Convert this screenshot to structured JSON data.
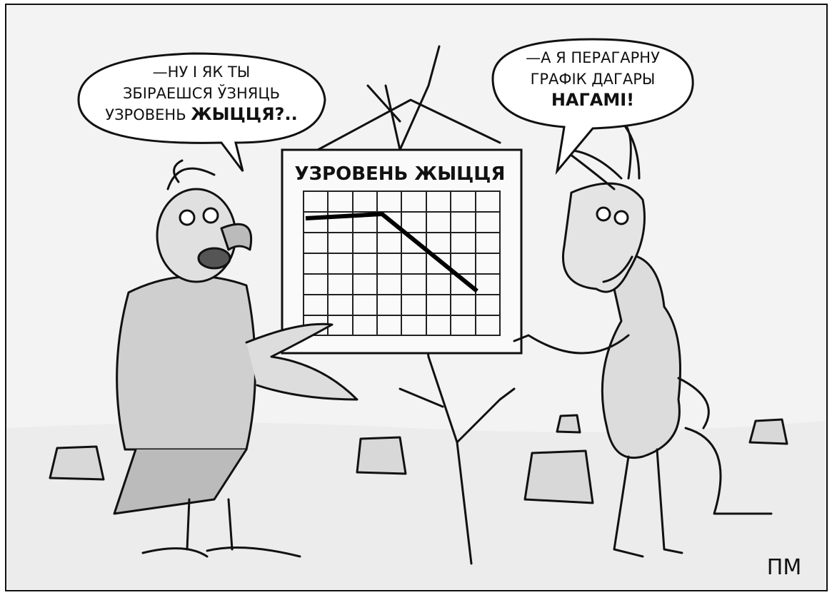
{
  "bubbles": [
    {
      "lines": [
        "—НУ І ЯК ТЫ",
        "ЗБІРАЕШСЯ ЎЗНЯЦЬ",
        "УЗРОВЕНЬ"
      ],
      "emphasis": "ЖЫЦЦЯ?.."
    },
    {
      "lines": [
        "—А Я ПЕРАГАРНУ",
        "ГРАФІК ДАГАРЫ"
      ],
      "emphasis": "НАГАМІ!"
    }
  ],
  "board": {
    "title": "УЗРОВЕНЬ ЖЫЦЦЯ"
  },
  "signature": "ПМ"
}
